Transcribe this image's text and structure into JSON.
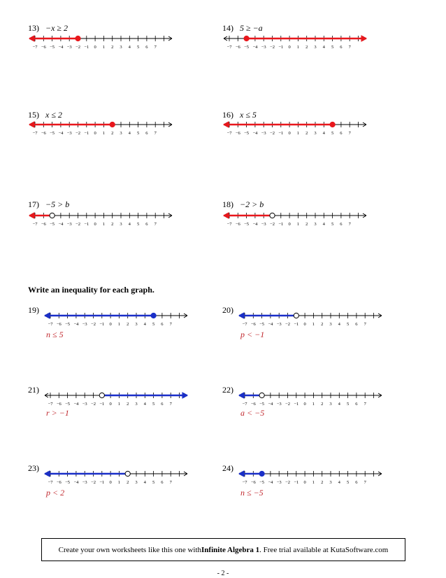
{
  "problems": [
    {
      "label": "13)",
      "expr": "−x ≥ 2",
      "endpoint": -2,
      "closed": true,
      "dir": "left",
      "color": "#e8171c",
      "answer": ""
    },
    {
      "label": "14)",
      "expr": "5 ≥ −a",
      "endpoint": -5,
      "closed": true,
      "dir": "right",
      "color": "#e8171c",
      "answer": ""
    },
    {
      "label": "15)",
      "expr": "x ≤ 2",
      "endpoint": 2,
      "closed": true,
      "dir": "left",
      "color": "#e8171c",
      "answer": ""
    },
    {
      "label": "16)",
      "expr": "x ≤ 5",
      "endpoint": 5,
      "closed": true,
      "dir": "left",
      "color": "#e8171c",
      "answer": ""
    },
    {
      "label": "17)",
      "expr": "−5 > b",
      "endpoint": -5,
      "closed": false,
      "dir": "left",
      "color": "#e8171c",
      "answer": ""
    },
    {
      "label": "18)",
      "expr": "−2 > b",
      "endpoint": -2,
      "closed": false,
      "dir": "left",
      "color": "#e8171c",
      "answer": ""
    },
    {
      "label": "19)",
      "expr": "",
      "endpoint": 5,
      "closed": true,
      "dir": "left",
      "color": "#1a2fc8",
      "answer": "n ≤ 5"
    },
    {
      "label": "20)",
      "expr": "",
      "endpoint": -1,
      "closed": false,
      "dir": "left",
      "color": "#1a2fc8",
      "answer": "p < −1"
    },
    {
      "label": "21)",
      "expr": "",
      "endpoint": -1,
      "closed": false,
      "dir": "right",
      "color": "#1a2fc8",
      "answer": "r > −1"
    },
    {
      "label": "22)",
      "expr": "",
      "endpoint": -5,
      "closed": false,
      "dir": "left",
      "color": "#1a2fc8",
      "answer": "a < −5"
    },
    {
      "label": "23)",
      "expr": "",
      "endpoint": 2,
      "closed": false,
      "dir": "left",
      "color": "#1a2fc8",
      "answer": "p < 2"
    },
    {
      "label": "24)",
      "expr": "",
      "endpoint": -5,
      "closed": true,
      "dir": "left",
      "color": "#1a2fc8",
      "answer": "n ≤ −5"
    }
  ],
  "tick_labels": [
    "−7",
    "−6",
    "−5",
    "−4",
    "−3",
    "−2",
    "−1",
    "0",
    "1",
    "2",
    "3",
    "4",
    "5",
    "6",
    "7"
  ],
  "section_heading": "Write an inequality for each graph.",
  "footer": {
    "pre": "Create your own worksheets like this one with ",
    "brand": "Infinite Algebra 1",
    "post": ".  Free trial available at KutaSoftware.com"
  },
  "page_number": "- 2 -"
}
